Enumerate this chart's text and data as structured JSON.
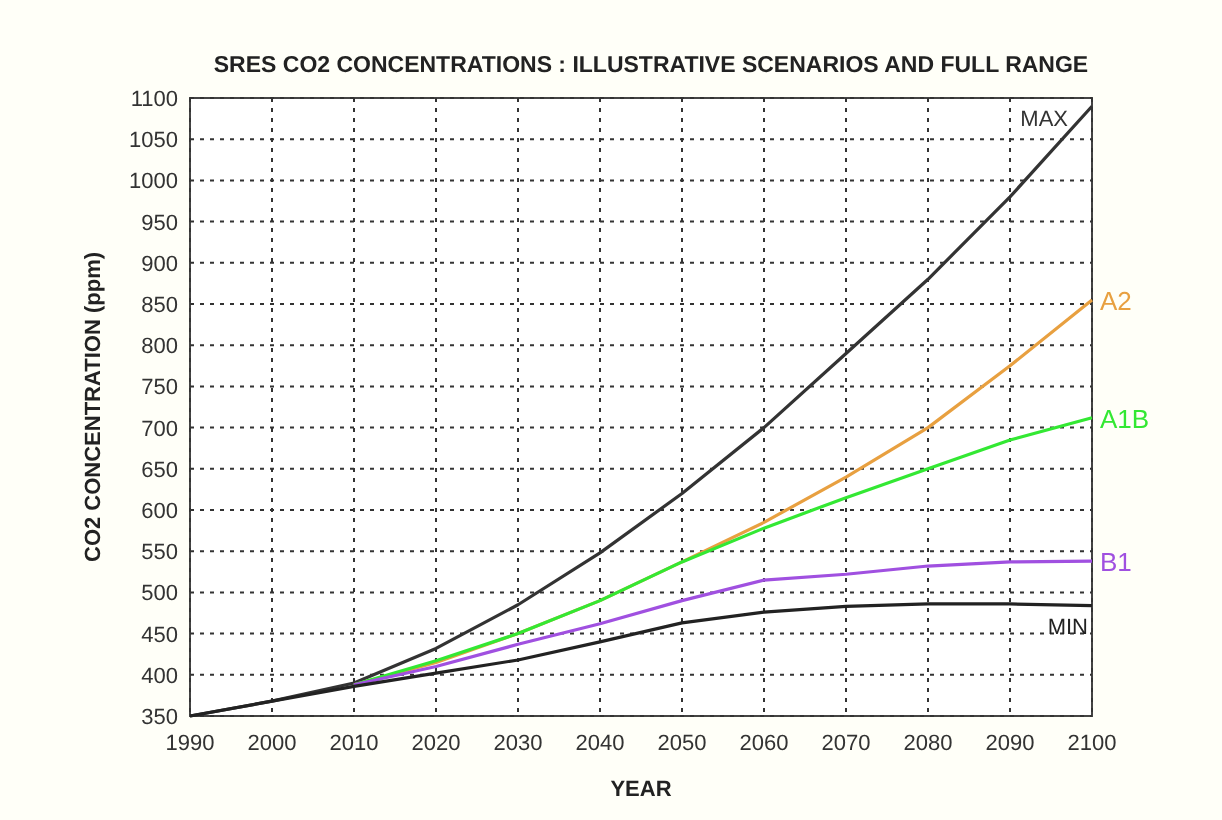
{
  "chart_data": {
    "type": "line",
    "title": "SRES CO2 CONCENTRATIONS : ILLUSTRATIVE SCENARIOS AND FULL RANGE",
    "xlabel": "YEAR",
    "ylabel": "CO2 CONCENTRATION (ppm)",
    "x": [
      1990,
      2000,
      2010,
      2020,
      2030,
      2040,
      2050,
      2060,
      2070,
      2080,
      2090,
      2100
    ],
    "series": [
      {
        "name": "MAX",
        "color": "#333333",
        "values": [
          350,
          368,
          390,
          432,
          485,
          548,
          620,
          700,
          790,
          880,
          980,
          1090
        ]
      },
      {
        "name": "A2",
        "color": "#e8a040",
        "values": [
          null,
          null,
          388,
          415,
          450,
          490,
          537,
          585,
          640,
          700,
          775,
          855
        ]
      },
      {
        "name": "A1B",
        "color": "#33e833",
        "values": [
          null,
          null,
          388,
          417,
          450,
          490,
          537,
          578,
          615,
          650,
          685,
          712
        ]
      },
      {
        "name": "B1",
        "color": "#a050e0",
        "values": [
          null,
          null,
          388,
          410,
          437,
          462,
          490,
          515,
          522,
          532,
          537,
          538
        ]
      },
      {
        "name": "MIN",
        "color": "#222222",
        "values": [
          350,
          368,
          386,
          402,
          418,
          440,
          463,
          476,
          483,
          486,
          486,
          484
        ]
      }
    ],
    "xlim": [
      1990,
      2100
    ],
    "xticks": [
      1990,
      2000,
      2010,
      2020,
      2030,
      2040,
      2050,
      2060,
      2070,
      2080,
      2090,
      2100
    ],
    "ylim": [
      350,
      1100
    ],
    "yticks": [
      350,
      400,
      450,
      500,
      550,
      600,
      650,
      700,
      750,
      800,
      850,
      900,
      950,
      1000,
      1050,
      1100
    ],
    "grid": true,
    "marker": "none",
    "line_style": "solid"
  }
}
